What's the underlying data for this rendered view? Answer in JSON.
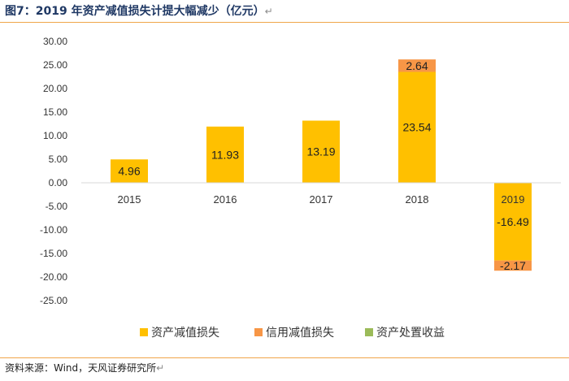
{
  "header": {
    "title": "图7：2019 年资产减值损失计提大幅减少（亿元）",
    "return_mark": "↵"
  },
  "footer": {
    "source": "资料来源：Wind，天风证券研究所",
    "return_mark": "↵"
  },
  "chart_data": {
    "type": "bar",
    "stacked": true,
    "categories": [
      "2015",
      "2016",
      "2017",
      "2018",
      "2019"
    ],
    "series": [
      {
        "name": "资产减值损失",
        "color": "#ffc000",
        "values": [
          4.96,
          11.93,
          13.19,
          23.54,
          -16.49
        ]
      },
      {
        "name": "信用减值损失",
        "color": "#f79646",
        "values": [
          0,
          0,
          0,
          2.64,
          -2.17
        ]
      },
      {
        "name": "资产处置收益",
        "color": "#9bbb59",
        "values": [
          0,
          0,
          0,
          0,
          0
        ]
      }
    ],
    "data_labels": [
      {
        "series": 0,
        "category": 0,
        "text": "4.96"
      },
      {
        "series": 0,
        "category": 1,
        "text": "11.93"
      },
      {
        "series": 0,
        "category": 2,
        "text": "13.19"
      },
      {
        "series": 0,
        "category": 3,
        "text": "23.54"
      },
      {
        "series": 1,
        "category": 3,
        "text": "2.64"
      },
      {
        "series": 0,
        "category": 4,
        "text": "-16.49"
      },
      {
        "series": 1,
        "category": 4,
        "text": "-2.17"
      }
    ],
    "ylim": [
      -25,
      30
    ],
    "yticks": [
      "30.00",
      "25.00",
      "20.00",
      "15.00",
      "10.00",
      "5.00",
      "0.00",
      "-5.00",
      "-10.00",
      "-15.00",
      "-20.00",
      "-25.00"
    ],
    "legend_position": "bottom",
    "grid": false,
    "title": "",
    "xlabel": "",
    "ylabel": ""
  }
}
